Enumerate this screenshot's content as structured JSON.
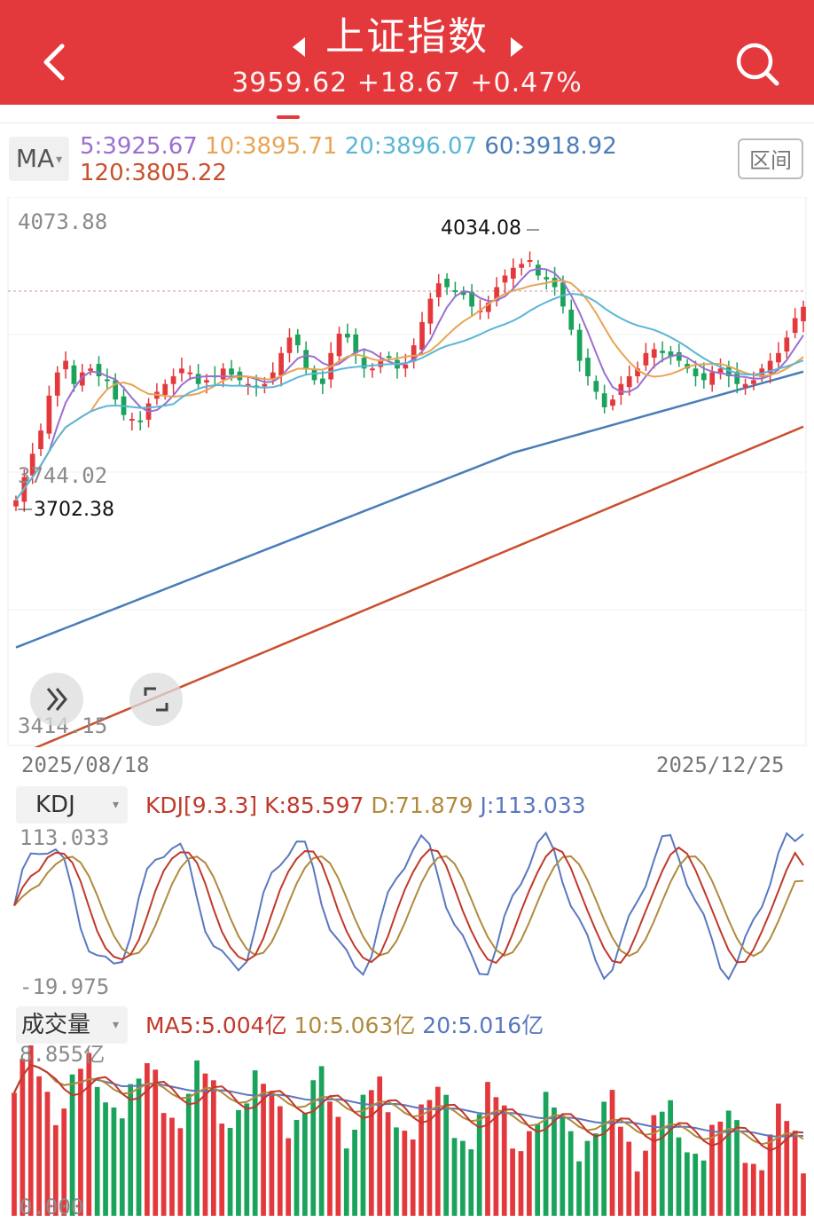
{
  "header": {
    "title": "上证指数",
    "quote": "3959.62 +18.67 +0.47%",
    "bg_color": "#e4393c"
  },
  "ma_bar": {
    "selector_label": "MA",
    "ma5": "5:3925.67",
    "ma10": "10:3895.71",
    "ma20": "20:3896.07",
    "ma60": "60:3918.92",
    "ma120": "120:3805.22",
    "range_button": "区间",
    "colors": {
      "ma5": "#9b6fd0",
      "ma10": "#e8a455",
      "ma20": "#5bb6d6",
      "ma60": "#4a7db8",
      "ma120": "#c9502e"
    }
  },
  "price_chart": {
    "y_max_label": "4073.88",
    "y_mid_label": "3744.02",
    "y_min_label": "3414.15",
    "high_annotation": "4034.08",
    "low_annotation": "3702.38",
    "start_date": "2025/08/18",
    "end_date": "2025/12/25",
    "up_color": "#e4393c",
    "down_color": "#1aa35a"
  },
  "kdj": {
    "selector_label": "KDJ",
    "params": "KDJ[9.3.3]",
    "k": "K:85.597",
    "d": "D:71.879",
    "j": "J:113.033",
    "max_label": "113.033",
    "min_label": "-19.975"
  },
  "volume": {
    "selector_label": "成交量",
    "ma5": "MA5:5.004亿",
    "ma10": "10:5.063亿",
    "ma20": "20:5.016亿",
    "max_label": "8.855亿",
    "min_label": "0.000"
  },
  "chart_data": {
    "type": "candlestick",
    "title": "上证指数",
    "ylim": [
      3414.15,
      4073.88
    ],
    "x_range": [
      "2025/08/18",
      "2025/12/25"
    ],
    "close_series": [
      3710,
      3740,
      3770,
      3800,
      3845,
      3875,
      3890,
      3860,
      3875,
      3880,
      3870,
      3865,
      3840,
      3820,
      3815,
      3812,
      3835,
      3850,
      3860,
      3870,
      3880,
      3875,
      3860,
      3865,
      3870,
      3880,
      3872,
      3865,
      3860,
      3855,
      3860,
      3875,
      3900,
      3920,
      3910,
      3880,
      3865,
      3860,
      3900,
      3925,
      3920,
      3900,
      3880,
      3880,
      3890,
      3895,
      3880,
      3885,
      3910,
      3940,
      3970,
      3990,
      3985,
      3980,
      3975,
      3960,
      3955,
      3965,
      3985,
      4000,
      4010,
      4015,
      4020,
      4000,
      3995,
      3985,
      3960,
      3930,
      3890,
      3870,
      3850,
      3830,
      3840,
      3860,
      3870,
      3880,
      3900,
      3905,
      3900,
      3895,
      3890,
      3880,
      3870,
      3865,
      3875,
      3880,
      3870,
      3860,
      3860,
      3865,
      3880,
      3890,
      3900,
      3920,
      3945,
      3959.62
    ],
    "ma_labels": [
      "5:3925.67",
      "10:3895.71",
      "20:3896.07",
      "60:3918.92",
      "120:3805.22"
    ],
    "kdj": {
      "K": 85.597,
      "D": 71.879,
      "J": 113.033,
      "range": [
        -19.975,
        113.033
      ]
    },
    "volume": {
      "max": 8.855,
      "unit": "亿",
      "ma5": 5.004,
      "ma10": 5.063,
      "ma20": 5.016
    }
  }
}
